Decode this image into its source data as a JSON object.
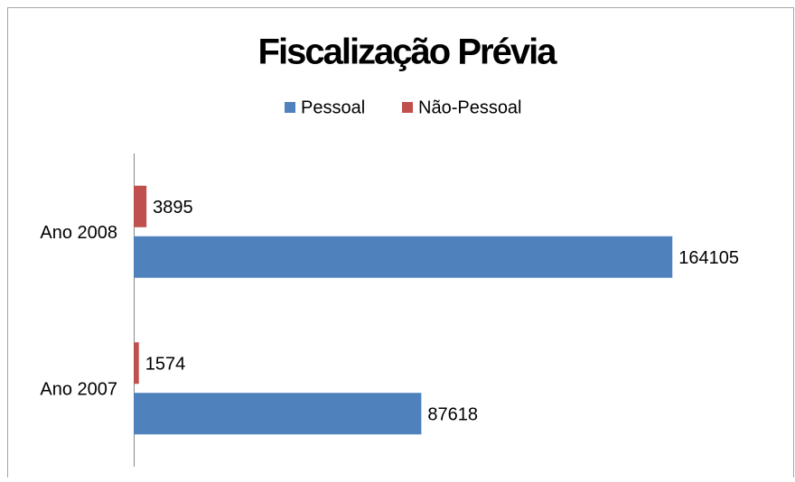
{
  "chart_data": {
    "type": "bar",
    "orientation": "horizontal",
    "title": "Fiscalização Prévia",
    "categories": [
      "Ano 2007",
      "Ano 2008"
    ],
    "series": [
      {
        "name": "Pessoal",
        "color": "#4f81bd",
        "values": [
          87618,
          164105
        ]
      },
      {
        "name": "Não-Pessoal",
        "color": "#c0504d",
        "values": [
          1574,
          3895
        ]
      }
    ],
    "xlim": [
      0,
      180000
    ],
    "legend": "top"
  }
}
